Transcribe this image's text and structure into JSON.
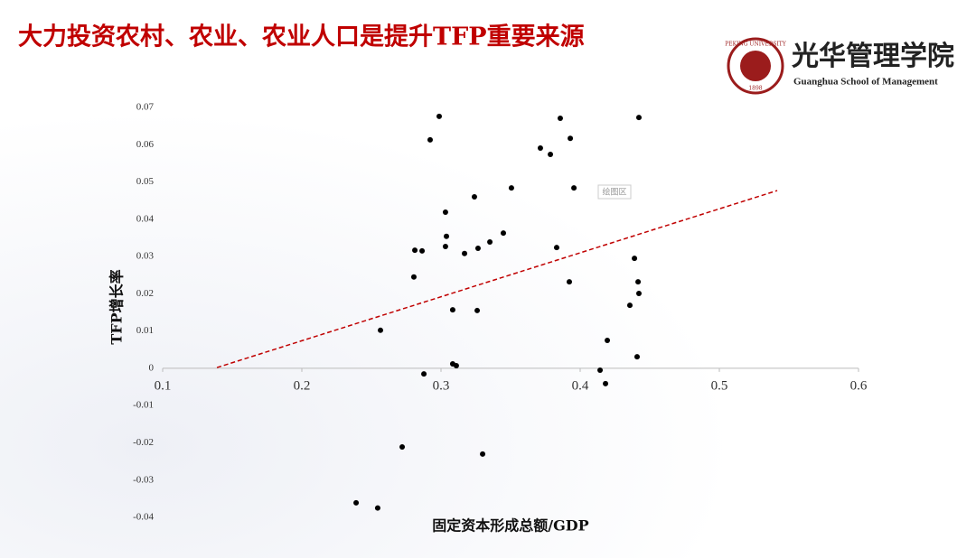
{
  "header": {
    "title": "大力投资农村、农业、农业人口是提升TFP重要来源"
  },
  "logo": {
    "name": "光华管理学院",
    "subtitle": "Guanghua School of Management",
    "seal_text": "PEKING UNIVERSITY",
    "seal_year": "1898"
  },
  "chart_data": {
    "type": "scatter",
    "x_label": "固定资本形成总额/GDP",
    "y_label": "TFP增长率",
    "plot_area_label": "绘图区",
    "x": [
      0.2987,
      0.2922,
      0.3857,
      0.4422,
      0.3929,
      0.3714,
      0.3786,
      0.3506,
      0.3955,
      0.324,
      0.3032,
      0.3039,
      0.3448,
      0.3351,
      0.3266,
      0.3032,
      0.2812,
      0.2864,
      0.3169,
      0.3831,
      0.439,
      0.2805,
      0.3922,
      0.4416,
      0.4422,
      0.4357,
      0.3084,
      0.326,
      0.2565,
      0.4195,
      0.4409,
      0.3084,
      0.311,
      0.2877,
      0.4143,
      0.4182,
      0.2721,
      0.3299,
      0.239,
      0.2545
    ],
    "values": [
      0.0676,
      0.0613,
      0.0671,
      0.0673,
      0.0617,
      0.0591,
      0.0574,
      0.0484,
      0.0484,
      0.046,
      0.0419,
      0.0354,
      0.0363,
      0.0339,
      0.0322,
      0.0327,
      0.0317,
      0.0315,
      0.0308,
      0.0324,
      0.0295,
      0.0245,
      0.0232,
      0.0232,
      0.0201,
      0.0169,
      0.0157,
      0.0155,
      0.0102,
      0.0075,
      0.0031,
      0.0012,
      0.0007,
      -0.0015,
      -0.0005,
      -0.0041,
      -0.0211,
      -0.023,
      -0.0361,
      -0.0375
    ],
    "color": "#000000",
    "trendline": {
      "x": [
        0.139,
        0.5416
      ],
      "values": [
        0.0002,
        0.0477
      ],
      "color": "#c00000"
    },
    "xlim": [
      0.1,
      0.6
    ],
    "xticks": [
      0.1,
      0.2,
      0.3,
      0.4,
      0.5,
      0.6
    ],
    "ylim": [
      -0.04,
      0.07
    ],
    "yticks": [
      0.07,
      0.06,
      0.05,
      0.04,
      0.03,
      0.02,
      0.01,
      0,
      -0.01,
      -0.02,
      -0.03,
      -0.04
    ]
  }
}
